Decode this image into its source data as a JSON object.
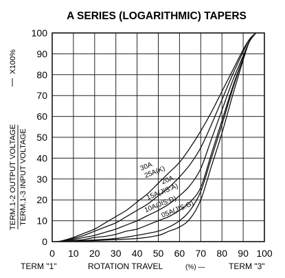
{
  "chart_data": {
    "type": "line",
    "title": "A SERIES (LOGARITHMIC) TAPERS",
    "xlabel": "ROTATION TRAVEL",
    "x_unit": "(%) —",
    "x_start_label": "TERM \"1\"",
    "x_end_label": "TERM \"3\"",
    "ylabel_line1": "TERM.1-2 OUTPUT VOLTAGE",
    "ylabel_line2": "TERM.1-3 INPUT VOLTAGE",
    "ylabel_multiplier": "X100%",
    "xlim": [
      0,
      100
    ],
    "ylim": [
      0,
      100
    ],
    "xticks": [
      "0",
      "10",
      "20",
      "30",
      "40",
      "50",
      "60",
      "70",
      "80",
      "90",
      "100"
    ],
    "yticks": [
      "0",
      "10",
      "20",
      "30",
      "40",
      "50",
      "60",
      "70",
      "80",
      "90",
      "100"
    ],
    "grid": true,
    "legend": "none (curves labeled inline)",
    "series": [
      {
        "name": "30A",
        "x": [
          2,
          5,
          10,
          15,
          20,
          25,
          30,
          35,
          40,
          45,
          50,
          55,
          60,
          65,
          70,
          75,
          80,
          85,
          90,
          93,
          96
        ],
        "y": [
          0,
          0.5,
          2,
          4,
          6,
          9,
          12,
          15,
          19,
          23,
          28,
          33,
          38,
          45,
          53,
          62,
          72,
          82,
          92,
          97,
          100
        ]
      },
      {
        "name": "25A(K)",
        "x": [
          3,
          5,
          10,
          15,
          20,
          25,
          30,
          35,
          40,
          45,
          50,
          55,
          60,
          65,
          70,
          75,
          80,
          85,
          90,
          93,
          96
        ],
        "y": [
          0,
          0.3,
          1.5,
          3,
          5,
          7,
          9,
          12,
          15,
          18,
          22,
          26,
          31,
          37,
          45,
          56,
          68,
          80,
          91,
          97,
          100
        ]
      },
      {
        "name": "20A",
        "x": [
          4,
          10,
          15,
          20,
          25,
          30,
          35,
          40,
          45,
          50,
          55,
          60,
          65,
          70,
          75,
          80,
          85,
          90,
          93,
          96
        ],
        "y": [
          0,
          1,
          2,
          3,
          4.5,
          6,
          8,
          10,
          12.5,
          15,
          18,
          22,
          27,
          35,
          49,
          63,
          77,
          89,
          96,
          100
        ]
      },
      {
        "name": "15A(JIS:A)",
        "x": [
          5,
          10,
          15,
          20,
          25,
          30,
          35,
          40,
          45,
          50,
          55,
          60,
          65,
          70,
          75,
          80,
          85,
          90,
          93,
          96
        ],
        "y": [
          0,
          0.5,
          1,
          2,
          2.5,
          3.5,
          5,
          6,
          8,
          10,
          12,
          15,
          19,
          26,
          42,
          58,
          74,
          88,
          96,
          100
        ]
      },
      {
        "name": "10A(JIS:D)",
        "x": [
          5,
          10,
          20,
          30,
          40,
          50,
          55,
          60,
          65,
          70,
          75,
          80,
          85,
          90,
          93,
          96
        ],
        "y": [
          0,
          0.3,
          0.8,
          1.5,
          3,
          5,
          7,
          10,
          15,
          24,
          40,
          56,
          73,
          88,
          96,
          100
        ]
      },
      {
        "name": "05A(JIS:G)",
        "x": [
          5,
          10,
          20,
          30,
          40,
          50,
          55,
          60,
          65,
          70,
          75,
          80,
          85,
          90,
          93,
          96
        ],
        "y": [
          0,
          0.2,
          0.5,
          1,
          1.5,
          3,
          5,
          7,
          11,
          20,
          36,
          52,
          70,
          87,
          96,
          100
        ]
      }
    ],
    "curve_labels": [
      {
        "series": "30A",
        "text": "30A",
        "at": [
          42,
          34
        ],
        "angle": 22
      },
      {
        "series": "25A(K)",
        "text": "25A(K)",
        "at": [
          44,
          30.5
        ],
        "angle": 22
      },
      {
        "series": "20A",
        "text": "20A",
        "at": [
          52,
          27.5
        ],
        "angle": 22
      },
      {
        "series": "15A(JIS:A)",
        "text": "15A(JIS:A)",
        "at": [
          45,
          20
        ],
        "angle": 22
      },
      {
        "series": "10A(JIS:D)",
        "text": "10A(JIS:D)",
        "at": [
          44,
          14
        ],
        "angle": 22
      },
      {
        "series": "05A(JIS:G)",
        "text": "05A(JIS:G)",
        "at": [
          52,
          11.5
        ],
        "angle": 22
      }
    ]
  }
}
